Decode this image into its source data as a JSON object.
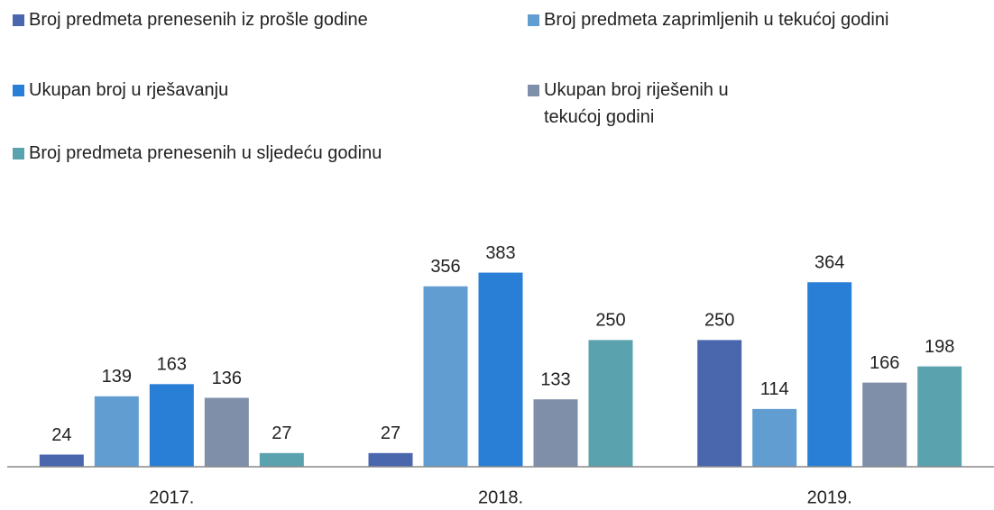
{
  "chart_data": {
    "type": "bar",
    "categories": [
      "2017.",
      "2018.",
      "2019."
    ],
    "series": [
      {
        "name": "Broj predmeta prenesenih iz prošle godine",
        "color": "#4a66ac",
        "values": [
          24,
          27,
          250
        ]
      },
      {
        "name": "Broj predmeta zaprimljenih u tekućoj godini",
        "color": "#629dd1",
        "values": [
          139,
          356,
          114
        ]
      },
      {
        "name": "Ukupan broj u rješavanju",
        "color": "#297fd5",
        "values": [
          163,
          383,
          364
        ]
      },
      {
        "name": "Ukupan broj riješenih u tekućoj godini",
        "color": "#7f8fa9",
        "values": [
          136,
          133,
          166
        ]
      },
      {
        "name": "Broj predmeta prenesenih u sljedeću godinu",
        "color": "#5aa2ae",
        "values": [
          27,
          250,
          198
        ]
      }
    ],
    "ylim": [
      0,
      400
    ],
    "legend": "top"
  }
}
